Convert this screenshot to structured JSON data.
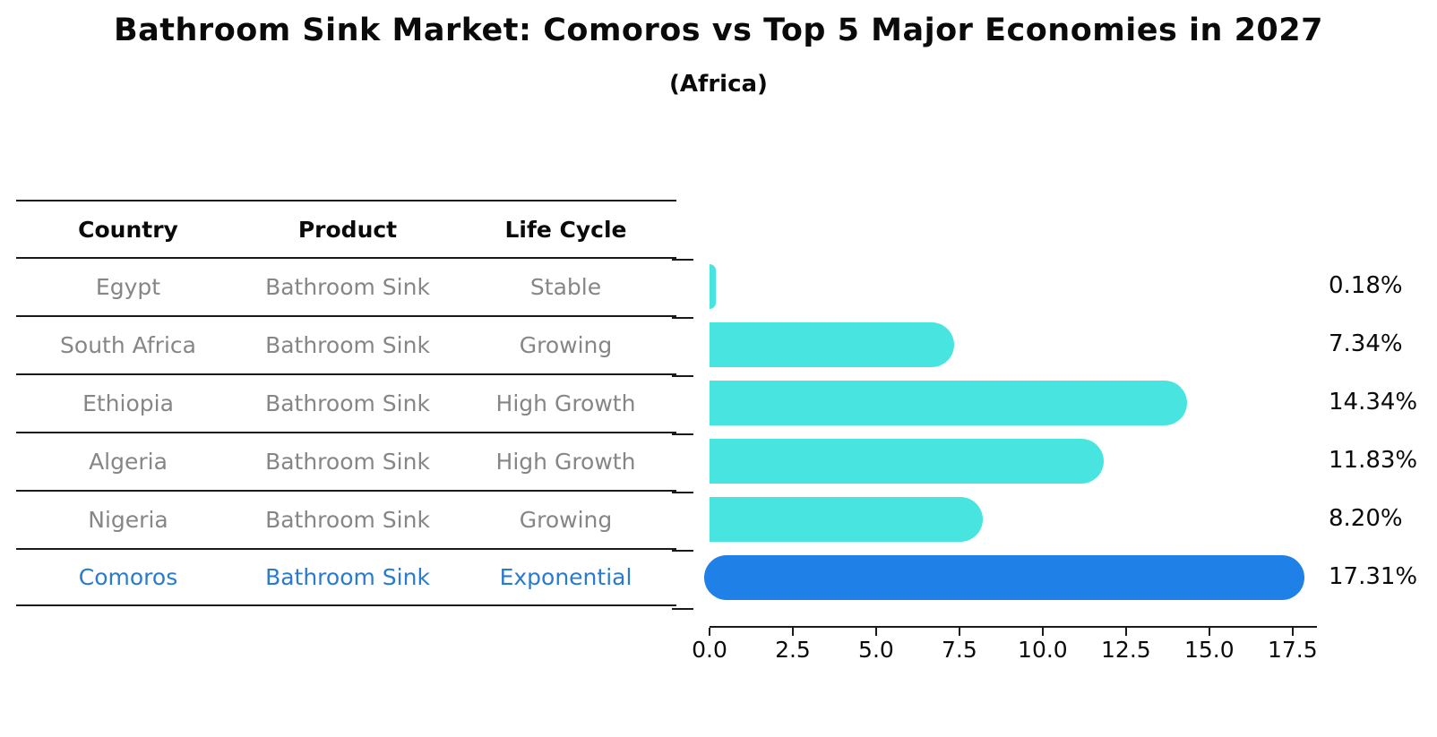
{
  "title": "Bathroom Sink Market: Comoros vs Top 5 Major Economies in 2027",
  "subtitle": "(Africa)",
  "colors": {
    "bar_default": "#48e5e0",
    "bar_highlight": "#1f80e8",
    "highlight_text": "#2a7acf",
    "row_text": "#868686",
    "line_color": "#1a1a1a"
  },
  "table": {
    "headers": [
      "Country",
      "Product",
      "Life Cycle"
    ],
    "rows": [
      {
        "country": "Egypt",
        "product": "Bathroom Sink",
        "life_cycle": "Stable",
        "highlight": false
      },
      {
        "country": "South Africa",
        "product": "Bathroom Sink",
        "life_cycle": "Growing",
        "highlight": false
      },
      {
        "country": "Ethiopia",
        "product": "Bathroom Sink",
        "life_cycle": "High Growth",
        "highlight": false
      },
      {
        "country": "Algeria",
        "product": "Bathroom Sink",
        "life_cycle": "High Growth",
        "highlight": false
      },
      {
        "country": "Nigeria",
        "product": "Bathroom Sink",
        "life_cycle": "Growing",
        "highlight": false
      },
      {
        "country": "Comoros",
        "product": "Bathroom Sink",
        "life_cycle": "Exponential",
        "highlight": true
      }
    ]
  },
  "chart_data": {
    "type": "bar",
    "orientation": "horizontal",
    "title": "Bathroom Sink Market: Comoros vs Top 5 Major Economies in 2027",
    "subtitle": "(Africa)",
    "categories": [
      "Egypt",
      "South Africa",
      "Ethiopia",
      "Algeria",
      "Nigeria",
      "Comoros"
    ],
    "values": [
      0.18,
      7.34,
      14.34,
      11.83,
      8.2,
      17.31
    ],
    "labels": [
      "0.18%",
      "7.34%",
      "14.34%",
      "11.83%",
      "8.20%",
      "17.31%"
    ],
    "unit": "%",
    "x_ticks": [
      0.0,
      2.5,
      5.0,
      7.5,
      10.0,
      12.5,
      15.0,
      17.5
    ],
    "x_tick_labels": [
      "0.0",
      "2.5",
      "5.0",
      "7.5",
      "10.0",
      "12.5",
      "15.0",
      "17.5"
    ],
    "xlim": [
      0,
      18.15
    ],
    "xlabel": "",
    "ylabel": "",
    "grid": false,
    "legend": false,
    "highlight_index": 5,
    "bar_color": "#48e5e0",
    "highlight_color": "#1f80e8",
    "highlight_border_style": "dotted"
  }
}
